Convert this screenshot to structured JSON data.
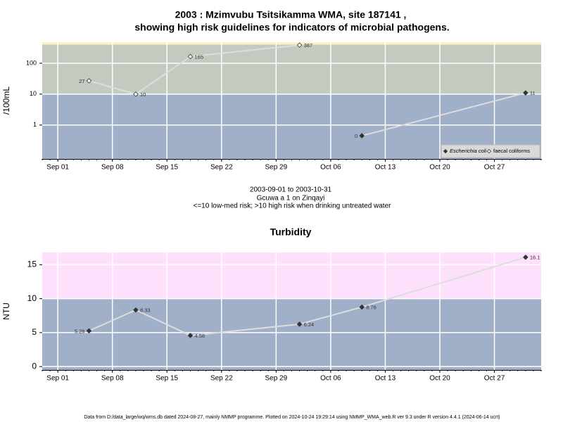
{
  "chart_data": [
    {
      "type": "line",
      "title": "2003 : Mzimvubu Tsitsikamma WMA, site 187141 ,",
      "title2": "showing high risk guidelines for indicators of microbial pathogens.",
      "subtitle": [
        "2003-09-01 to 2003-10-31",
        "Gcuwa a 1 on Zinqayi",
        "<=10 low-med risk; >10 high risk when drinking untreated water"
      ],
      "ylabel": "/100mL",
      "log_y": true,
      "xlim": [
        "2003-08-30",
        "2003-11-02"
      ],
      "xticks": [
        {
          "value": "2003-09-01",
          "label": "Sep 01"
        },
        {
          "value": "2003-09-08",
          "label": "Sep 08"
        },
        {
          "value": "2003-09-15",
          "label": "Sep 15"
        },
        {
          "value": "2003-09-22",
          "label": "Sep 22"
        },
        {
          "value": "2003-09-29",
          "label": "Sep 29"
        },
        {
          "value": "2003-10-06",
          "label": "Oct 06"
        },
        {
          "value": "2003-10-13",
          "label": "Oct 13"
        },
        {
          "value": "2003-10-20",
          "label": "Oct 20"
        },
        {
          "value": "2003-10-27",
          "label": "Oct 27"
        }
      ],
      "ylim": [
        0.08,
        480
      ],
      "yticks": [
        1,
        10,
        100
      ],
      "grid": true,
      "bands": [
        {
          "from": 0.08,
          "to": 10,
          "color": "#a0b0c9"
        },
        {
          "from": 10,
          "to": 400,
          "color": "#c3cbc0"
        },
        {
          "from": 400,
          "to": 480,
          "color": "#fbf3c4"
        }
      ],
      "legend": "bottom-right",
      "line_color": "#dddddd",
      "series": [
        {
          "name": "Escherichia coli",
          "color": "#333333",
          "fill": "#333333",
          "x": [
            "2003-10-10",
            "2003-10-31"
          ],
          "values": [
            0.45,
            11
          ],
          "value_labels": [
            "0",
            "11"
          ]
        },
        {
          "name": "faecal coliforms",
          "color": "#333333",
          "fill": "#ffffff",
          "x": [
            "2003-09-05",
            "2003-09-11",
            "2003-09-18",
            "2003-10-02"
          ],
          "values": [
            27,
            10,
            165,
            387
          ]
        }
      ]
    },
    {
      "type": "line",
      "title": "Turbidity",
      "ylabel": "NTU",
      "log_y": false,
      "xlim": [
        "2003-08-30",
        "2003-11-02"
      ],
      "xticks": [
        {
          "value": "2003-09-01",
          "label": "Sep 01"
        },
        {
          "value": "2003-09-08",
          "label": "Sep 08"
        },
        {
          "value": "2003-09-15",
          "label": "Sep 15"
        },
        {
          "value": "2003-09-22",
          "label": "Sep 22"
        },
        {
          "value": "2003-09-29",
          "label": "Sep 29"
        },
        {
          "value": "2003-10-06",
          "label": "Oct 06"
        },
        {
          "value": "2003-10-13",
          "label": "Oct 13"
        },
        {
          "value": "2003-10-20",
          "label": "Oct 20"
        },
        {
          "value": "2003-10-27",
          "label": "Oct 27"
        }
      ],
      "ylim": [
        -0.5,
        16.8
      ],
      "yticks": [
        0,
        5,
        10,
        15
      ],
      "grid": true,
      "bands": [
        {
          "from": -0.5,
          "to": 10,
          "color": "#a0b0c9"
        },
        {
          "from": 10,
          "to": 16.8,
          "color": "#fde0fb"
        }
      ],
      "line_color": "#dddddd",
      "series": [
        {
          "name": "Turbidity",
          "color": "#333333",
          "fill": "#333333",
          "x": [
            "2003-09-05",
            "2003-09-11",
            "2003-09-18",
            "2003-10-02",
            "2003-10-10",
            "2003-10-31"
          ],
          "values": [
            5.26,
            8.33,
            4.58,
            6.24,
            8.76,
            16.1
          ]
        }
      ]
    }
  ],
  "footer": "Data from D:/data_large/wq/wms.db dated 2024-08-27, mainly NMMP programme. Plotted on 2024-10-24 19:29:14 using NMMP_WMA_web.R ver 9.3 under R version 4.4.1 (2024-06-14 ucrt)"
}
